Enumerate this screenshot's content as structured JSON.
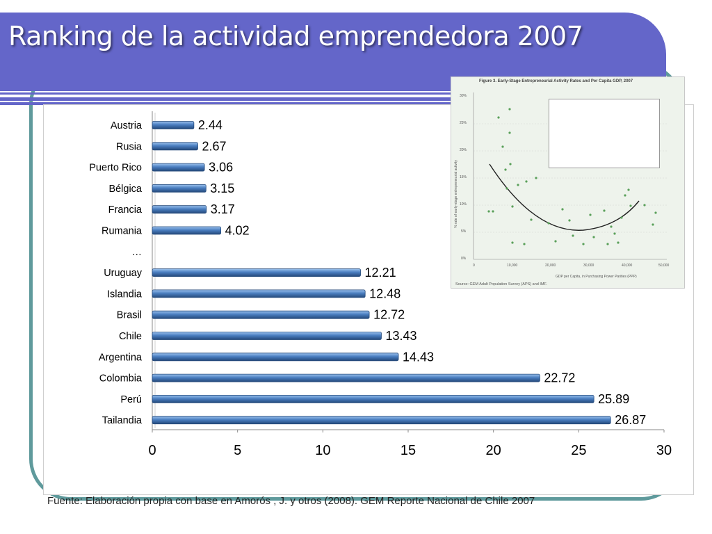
{
  "slide": {
    "title": "Ranking de la actividad emprendedora 2007",
    "source": "Fuente: Elaboración propia con base en Amorós , J. y otros (2008). GEM Reporte Nacional de Chile 2007"
  },
  "colors": {
    "title_band": "#6466c9",
    "frame": "#5f9a9c",
    "bar_fill": "#4a7ec0",
    "bar_edge": "#24497a"
  },
  "chart_data": {
    "type": "bar",
    "orientation": "horizontal",
    "categories": [
      "Austria",
      "Rusia",
      "Puerto Rico",
      "Bélgica",
      "Francia",
      "Rumania",
      "…",
      "Uruguay",
      "Islandia",
      "Brasil",
      "Chile",
      "Argentina",
      "Colombia",
      "Perú",
      "Tailandia"
    ],
    "values": [
      2.44,
      2.67,
      3.06,
      3.15,
      3.17,
      4.02,
      null,
      12.21,
      12.48,
      12.72,
      13.43,
      14.43,
      22.72,
      25.89,
      26.87
    ],
    "value_labels": [
      "2.44",
      "2.67",
      "3.06",
      "3.15",
      "3.17",
      "4.02",
      "",
      "12.21",
      "12.48",
      "12.72",
      "13.43",
      "14.43",
      "22.72",
      "25.89",
      "26.87"
    ],
    "xlim": [
      0,
      30
    ],
    "xticks": [
      "0",
      "5",
      "10",
      "15",
      "20",
      "25",
      "30"
    ],
    "xtick_values": [
      0,
      5,
      10,
      15,
      20,
      25,
      30
    ],
    "grid": false,
    "legend": "none"
  },
  "inset_figure": {
    "title": "Figure 3. Early-Stage Entrepreneurial Activity Rates and Per Capita GDP, 2007",
    "y_axis_label": "% rate of early-stage entrepreneurial activity",
    "x_axis_label": "GDP per Capita, in Purchasing Power Parities (PPP)",
    "source": "Source: GEM Adult Population Survey (APS) and IMF.",
    "y_ticks": [
      "0%",
      "5%",
      "10%",
      "15%",
      "20%",
      "25%",
      "30%"
    ],
    "x_ticks": [
      "0",
      "10,000",
      "20,000",
      "30,000",
      "40,000",
      "50,000"
    ]
  }
}
